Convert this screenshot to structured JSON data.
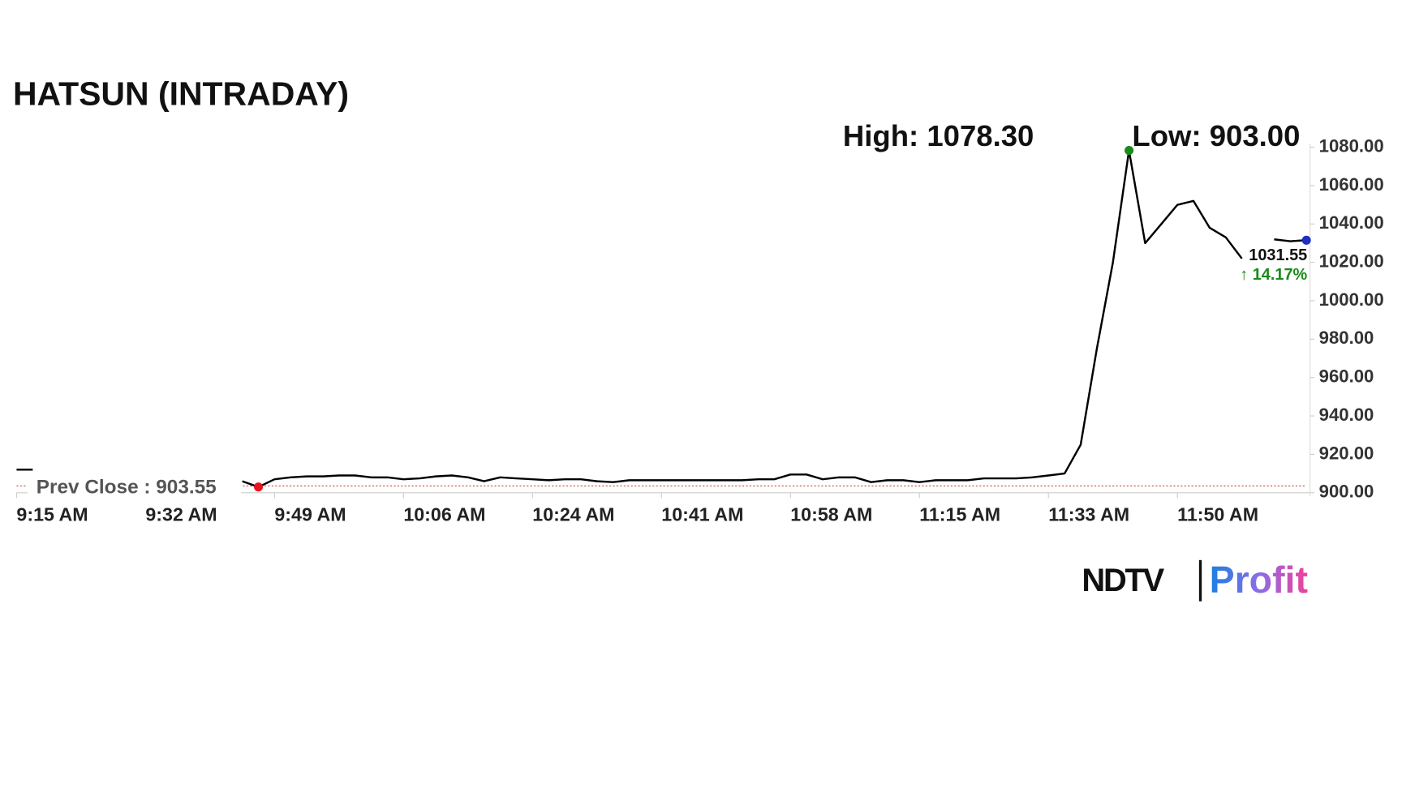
{
  "chart_data": {
    "type": "line",
    "title": "HATSUN (INTRADAY)",
    "high_label": "High: 1078.30",
    "low_label": "Low: 903.00",
    "prev_close": 903.55,
    "prev_close_label": "Prev Close : 903.55",
    "last_label": "1031.55",
    "change_label": "↑ 14.17%",
    "brand": "NDTV",
    "brand_sub": "Profit",
    "categories": [
      "9:15 AM",
      null,
      null,
      null,
      null,
      null,
      null,
      null,
      "9:32 AM",
      null,
      null,
      null,
      null,
      null,
      null,
      null,
      "9:49 AM",
      null,
      null,
      null,
      null,
      null,
      null,
      null,
      "10:06 AM",
      null,
      null,
      null,
      null,
      null,
      null,
      null,
      "10:24 AM",
      null,
      null,
      null,
      null,
      null,
      null,
      null,
      "10:41 AM",
      null,
      null,
      null,
      null,
      null,
      null,
      null,
      "10:58 AM",
      null,
      null,
      null,
      null,
      null,
      null,
      null,
      "11:15 AM",
      null,
      null,
      null,
      null,
      null,
      null,
      null,
      "11:33 AM",
      null,
      null,
      null,
      null,
      null,
      null,
      null,
      "11:50 AM",
      null,
      null,
      null,
      null,
      null,
      null,
      null,
      null
    ],
    "series": [
      {
        "name": "HATSUN",
        "color": "#000000",
        "values": [
          912,
          912,
          null,
          null,
          null,
          null,
          null,
          null,
          null,
          null,
          null,
          null,
          null,
          null,
          906,
          903,
          907,
          908,
          908.5,
          908.5,
          909,
          909,
          908,
          908,
          907,
          907.5,
          908.5,
          909,
          908,
          906,
          908,
          907.5,
          907,
          906.5,
          907,
          907,
          906,
          905.5,
          906.5,
          906.5,
          906.5,
          906.5,
          906.5,
          906.5,
          906.5,
          906.5,
          907,
          907,
          909.5,
          909.5,
          907,
          908,
          908,
          905.5,
          906.5,
          906.5,
          905.5,
          906.5,
          906.5,
          906.5,
          907.5,
          907.5,
          907.5,
          908,
          909,
          910,
          925,
          975,
          1020,
          1078.3,
          1030,
          1040,
          1050,
          1052,
          1038,
          1033,
          1022,
          null,
          1032,
          1031,
          1031.55
        ]
      }
    ],
    "high_index_color": "#1a8a1a",
    "low_index_color": "#e8141e",
    "last_index_color": "#1f2fbf",
    "ylim": [
      900,
      1080
    ],
    "yticks": [
      {
        "value": 900,
        "label": "900.00"
      },
      {
        "value": 920,
        "label": "920.00"
      },
      {
        "value": 940,
        "label": "940.00"
      },
      {
        "value": 960,
        "label": "960.00"
      },
      {
        "value": 980,
        "label": "980.00"
      },
      {
        "value": 1000,
        "label": "1000.00"
      },
      {
        "value": 1020,
        "label": "1020.00"
      },
      {
        "value": 1040,
        "label": "1040.00"
      },
      {
        "value": 1060,
        "label": "1060.00"
      },
      {
        "value": 1080,
        "label": "1080.00"
      }
    ],
    "grid": false
  }
}
